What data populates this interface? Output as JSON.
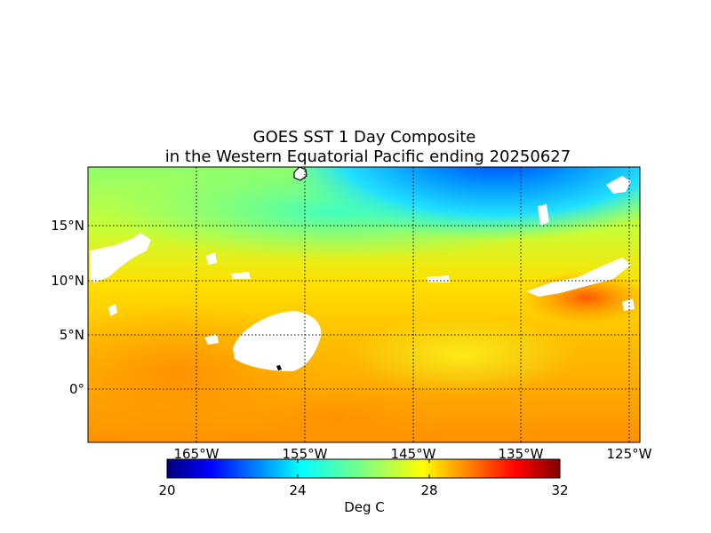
{
  "title_line1": "GOES SST 1 Day Composite",
  "title_line2": "in the Western Equatorial Pacific ending 20250627",
  "lat_ticks": [
    {
      "label": "15°N",
      "lat": 15
    },
    {
      "label": "10°N",
      "lat": 10
    },
    {
      "label": "5°N",
      "lat": 5
    },
    {
      "label": "0°",
      "lat": 0
    }
  ],
  "lon_ticks": [
    {
      "label": "165°W",
      "lon": -165
    },
    {
      "label": "155°W",
      "lon": -155
    },
    {
      "label": "145°W",
      "lon": -145
    },
    {
      "label": "135°W",
      "lon": -135
    },
    {
      "label": "125°W",
      "lon": -125
    }
  ],
  "colorbar": {
    "label": "Deg C",
    "min": 20,
    "max": 32,
    "ticks": [
      "20",
      "24",
      "28",
      "32"
    ],
    "colormap": "jet"
  },
  "map_extent": {
    "lon_min": -175,
    "lon_max": -124,
    "lat_min": -5,
    "lat_max": 20
  },
  "colors": {
    "land": "#ffffff",
    "coast": "#000000",
    "no_data": "#ffffff"
  }
}
